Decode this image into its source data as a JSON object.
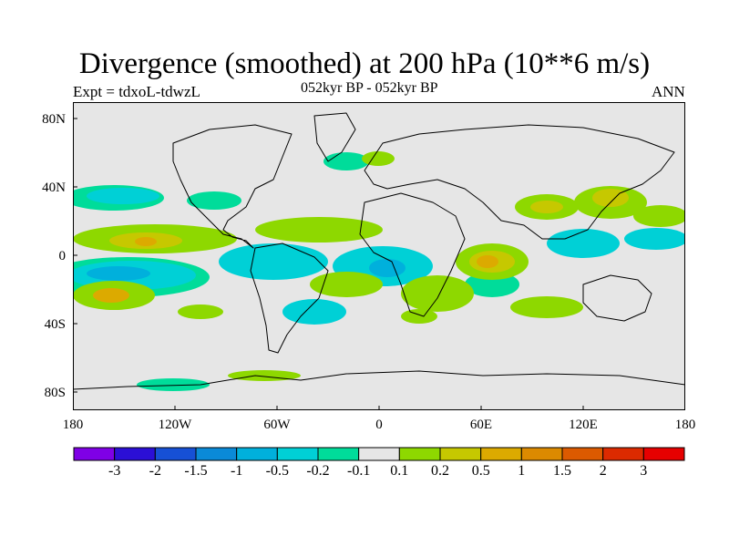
{
  "figure": {
    "title": "Divergence (smoothed) at 200 hPa (10**6 m/s)",
    "experiment": "Expt = tdxoL-tdwzL",
    "period": "052kyr BP - 052kyr BP",
    "season": "ANN"
  },
  "axes": {
    "lat_ticks": [
      "80N",
      "40N",
      "0",
      "40S",
      "80S"
    ],
    "lon_ticks": [
      "180",
      "120W",
      "60W",
      "0",
      "60E",
      "120E",
      "180"
    ]
  },
  "colorbar": {
    "labels": [
      "-3",
      "-2",
      "-1.5",
      "-1",
      "-0.5",
      "-0.2",
      "-0.1",
      "0.1",
      "0.2",
      "0.5",
      "1",
      "1.5",
      "2",
      "3"
    ],
    "colors": [
      "#7f00e6",
      "#2b0fd6",
      "#1650d6",
      "#0a8ad8",
      "#00b0dc",
      "#00d0d6",
      "#00dc9a",
      "#e6e6e6",
      "#8ed800",
      "#c6c800",
      "#dcaa00",
      "#dc8a00",
      "#dc5a00",
      "#dc2a00",
      "#e60000"
    ]
  },
  "map_colors": {
    "background": "#e6e6e6",
    "coastline": "#000000"
  }
}
